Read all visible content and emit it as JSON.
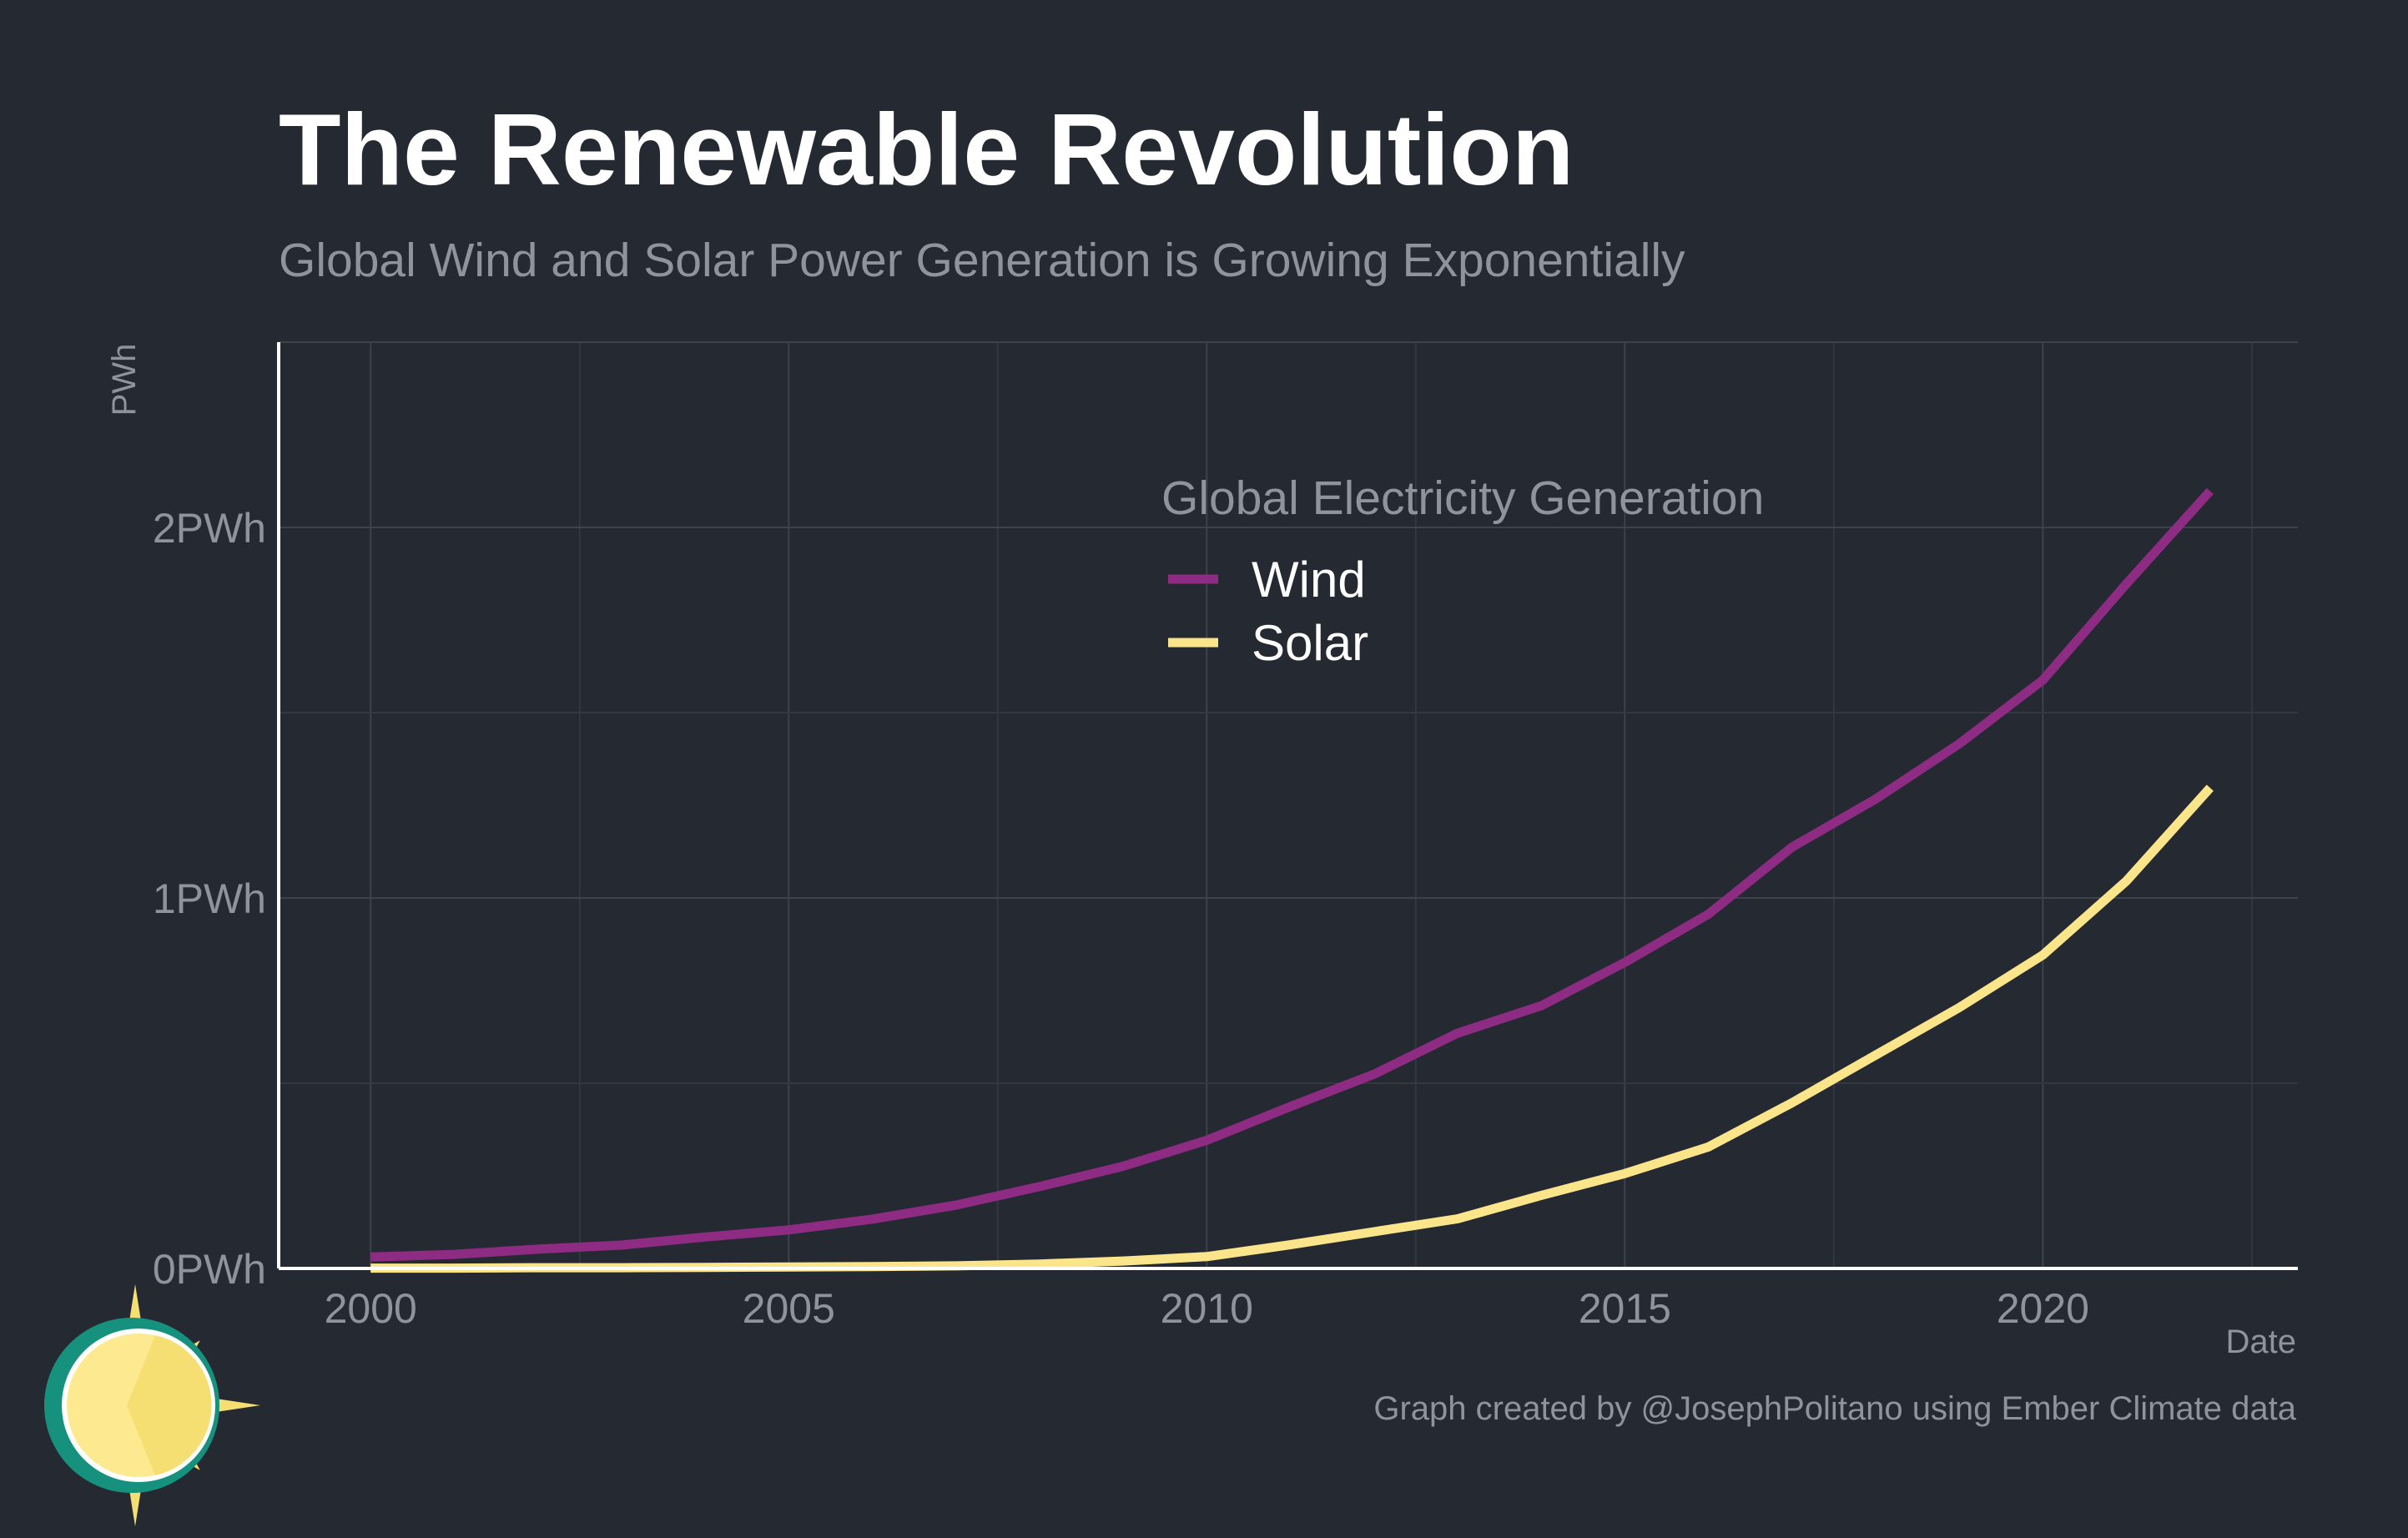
{
  "colors": {
    "background": "#252932",
    "wind": "#8e2c83",
    "solar": "#fbe58b",
    "text_muted": "#8e939c",
    "text_main": "#ffffff",
    "logo_ring": "#15917d",
    "logo_sun": "#f6df72"
  },
  "logo": {
    "icon": "sun-logo-icon"
  },
  "chart_data": {
    "type": "line",
    "title": "The Renewable Revolution",
    "subtitle": "Global Wind and Solar Power Generation is Growing Exponentially",
    "xlabel": "Date",
    "ylabel": "PWh",
    "x": [
      2000,
      2001,
      2002,
      2003,
      2004,
      2005,
      2006,
      2007,
      2008,
      2009,
      2010,
      2011,
      2012,
      2013,
      2014,
      2015,
      2016,
      2017,
      2018,
      2019,
      2020,
      2021,
      2022
    ],
    "series": [
      {
        "name": "Wind",
        "color": "#8e2c83",
        "values": [
          0.031,
          0.038,
          0.052,
          0.063,
          0.085,
          0.104,
          0.133,
          0.171,
          0.221,
          0.276,
          0.346,
          0.437,
          0.524,
          0.635,
          0.709,
          0.826,
          0.956,
          1.137,
          1.267,
          1.416,
          1.588,
          1.848,
          2.098
        ]
      },
      {
        "name": "Solar",
        "color": "#fbe58b",
        "values": [
          0.001,
          0.001,
          0.002,
          0.002,
          0.003,
          0.004,
          0.005,
          0.007,
          0.012,
          0.02,
          0.032,
          0.064,
          0.099,
          0.134,
          0.197,
          0.256,
          0.328,
          0.447,
          0.576,
          0.704,
          0.846,
          1.046,
          1.297
        ]
      }
    ],
    "xlim": [
      1998.9,
      2023.05
    ],
    "ylim": [
      0,
      2.5
    ],
    "x_ticks": [
      2000,
      2005,
      2010,
      2015,
      2020
    ],
    "x_tick_labels": [
      "2000",
      "2005",
      "2010",
      "2015",
      "2020"
    ],
    "x_minor_ticks": [
      2002.5,
      2007.5,
      2012.5,
      2017.5,
      2022.5
    ],
    "y_ticks": [
      0,
      1,
      2
    ],
    "y_tick_labels": [
      "0PWh",
      "1PWh",
      "2PWh"
    ],
    "y_minor_ticks": [
      0.5,
      1.5
    ],
    "grid": true,
    "legend": {
      "title": "Global Electricity Generation",
      "position": "top-center",
      "items": [
        "Wind",
        "Solar"
      ]
    },
    "caption": "Graph created by @JosephPolitano using Ember Climate data"
  }
}
